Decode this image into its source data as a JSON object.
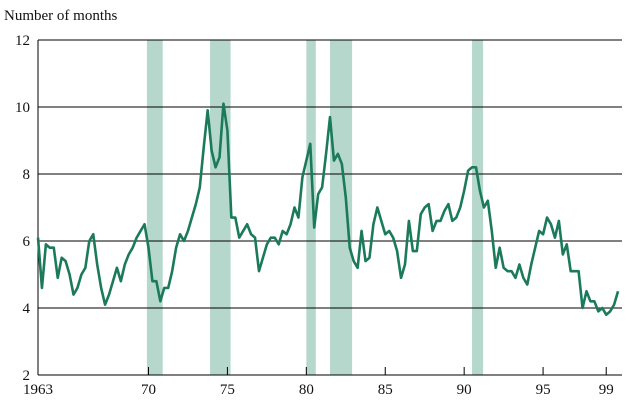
{
  "chart_data": {
    "type": "line",
    "y_axis_label": "Number of months",
    "x": [
      1963,
      1963.25,
      1963.5,
      1963.75,
      1964,
      1964.25,
      1964.5,
      1964.75,
      1965,
      1965.25,
      1965.5,
      1965.75,
      1966,
      1966.25,
      1966.5,
      1966.75,
      1967,
      1967.25,
      1967.5,
      1967.75,
      1968,
      1968.25,
      1968.5,
      1968.75,
      1969,
      1969.25,
      1969.5,
      1969.75,
      1970,
      1970.25,
      1970.5,
      1970.75,
      1971,
      1971.25,
      1971.5,
      1971.75,
      1972,
      1972.25,
      1972.5,
      1972.75,
      1973,
      1973.25,
      1973.5,
      1973.75,
      1974,
      1974.25,
      1974.5,
      1974.75,
      1975,
      1975.25,
      1975.5,
      1975.75,
      1976,
      1976.25,
      1976.5,
      1976.75,
      1977,
      1977.25,
      1977.5,
      1977.75,
      1978,
      1978.25,
      1978.5,
      1978.75,
      1979,
      1979.25,
      1979.5,
      1979.75,
      1980,
      1980.25,
      1980.5,
      1980.75,
      1981,
      1981.25,
      1981.5,
      1981.75,
      1982,
      1982.25,
      1982.5,
      1982.75,
      1983,
      1983.25,
      1983.5,
      1983.75,
      1984,
      1984.25,
      1984.5,
      1984.75,
      1985,
      1985.25,
      1985.5,
      1985.75,
      1986,
      1986.25,
      1986.5,
      1986.75,
      1987,
      1987.25,
      1987.5,
      1987.75,
      1988,
      1988.25,
      1988.5,
      1988.75,
      1989,
      1989.25,
      1989.5,
      1989.75,
      1990,
      1990.25,
      1990.5,
      1990.75,
      1991,
      1991.25,
      1991.5,
      1991.75,
      1992,
      1992.25,
      1992.5,
      1992.75,
      1993,
      1993.25,
      1993.5,
      1993.75,
      1994,
      1994.25,
      1994.5,
      1994.75,
      1995,
      1995.25,
      1995.5,
      1995.75,
      1996,
      1996.25,
      1996.5,
      1996.75,
      1997,
      1997.25,
      1997.5,
      1997.75,
      1998,
      1998.25,
      1998.5,
      1998.75,
      1999,
      1999.25,
      1999.5,
      1999.75
    ],
    "series": [
      {
        "color": "#1b7a5c",
        "values": [
          6.1,
          4.6,
          5.9,
          5.8,
          5.8,
          4.9,
          5.5,
          5.4,
          5.0,
          4.4,
          4.6,
          5.0,
          5.2,
          6.0,
          6.2,
          5.3,
          4.6,
          4.1,
          4.4,
          4.8,
          5.2,
          4.8,
          5.3,
          5.6,
          5.8,
          6.1,
          6.3,
          6.5,
          5.8,
          4.8,
          4.8,
          4.2,
          4.6,
          4.6,
          5.1,
          5.8,
          6.2,
          6.0,
          6.3,
          6.7,
          7.1,
          7.6,
          8.8,
          9.9,
          8.7,
          8.2,
          8.5,
          10.1,
          9.3,
          6.7,
          6.7,
          6.1,
          6.3,
          6.5,
          6.2,
          6.1,
          5.1,
          5.5,
          5.9,
          6.1,
          6.1,
          5.9,
          6.3,
          6.2,
          6.5,
          7.0,
          6.7,
          7.9,
          8.4,
          8.9,
          6.4,
          7.4,
          7.6,
          8.6,
          9.7,
          8.4,
          8.6,
          8.3,
          7.3,
          5.8,
          5.4,
          5.2,
          6.3,
          5.4,
          5.5,
          6.5,
          7.0,
          6.6,
          6.2,
          6.3,
          6.1,
          5.7,
          4.9,
          5.3,
          6.6,
          5.7,
          5.7,
          6.8,
          7.0,
          7.1,
          6.3,
          6.6,
          6.6,
          6.9,
          7.1,
          6.6,
          6.7,
          7.0,
          7.5,
          8.1,
          8.2,
          8.2,
          7.5,
          7.0,
          7.2,
          6.3,
          5.2,
          5.8,
          5.2,
          5.1,
          5.1,
          4.9,
          5.3,
          4.9,
          4.7,
          5.3,
          5.8,
          6.3,
          6.2,
          6.7,
          6.5,
          6.1,
          6.6,
          5.6,
          5.9,
          5.1,
          5.1,
          5.1,
          4.0,
          4.5,
          4.2,
          4.2,
          3.9,
          4.0,
          3.8,
          3.9,
          4.1,
          4.5
        ]
      }
    ],
    "shaded_ranges": [
      [
        1969.9,
        1970.9
      ],
      [
        1973.9,
        1975.2
      ],
      [
        1980.0,
        1980.6
      ],
      [
        1981.5,
        1982.9
      ],
      [
        1990.5,
        1991.2
      ]
    ],
    "shade_color": "#b6d7cc",
    "xlim": [
      1963,
      2000
    ],
    "xticks": [
      1963,
      {
        "value": 1970,
        "label": "70"
      },
      {
        "value": 1975,
        "label": "75"
      },
      {
        "value": 1980,
        "label": "80"
      },
      {
        "value": 1985,
        "label": "85"
      },
      {
        "value": 1990,
        "label": "90"
      },
      {
        "value": 1995,
        "label": "95"
      },
      {
        "value": 1999,
        "label": "99"
      }
    ],
    "ylim": [
      2,
      12
    ],
    "yticks": [
      2,
      4,
      6,
      8,
      10,
      12
    ],
    "grid": true
  }
}
